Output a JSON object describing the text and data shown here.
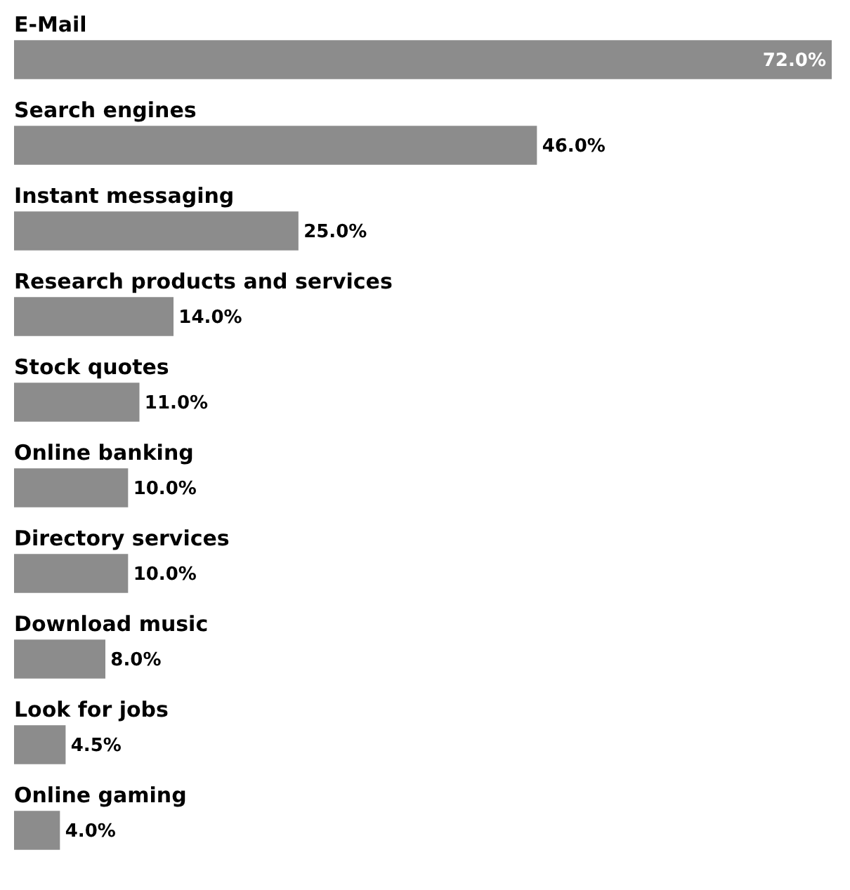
{
  "chart_data": {
    "type": "bar",
    "orientation": "horizontal",
    "categories": [
      "E-Mail",
      "Search engines",
      "Instant messaging",
      "Research products and services",
      "Stock quotes",
      "Online banking",
      "Directory services",
      "Download music",
      "Look for jobs",
      "Online gaming"
    ],
    "values": [
      72,
      46,
      25,
      14,
      11,
      10,
      10,
      8,
      4.5,
      4
    ],
    "value_labels": [
      "72.0%",
      "46.0%",
      "25.0%",
      "14.0%",
      "11.0%",
      "10.0%",
      "10.0%",
      "8.0%",
      "4.5%",
      "4.0%"
    ],
    "color": "#8c8c8c"
  }
}
